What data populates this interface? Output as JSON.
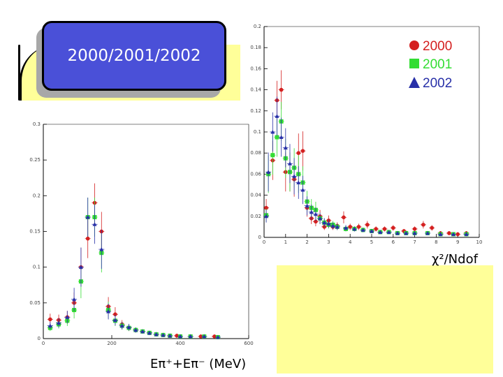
{
  "slide": {
    "badge_text": "2000/2001/2002"
  },
  "colors": {
    "y2000": "#d42020",
    "y2001": "#33dd33",
    "y2002": "#2830a8",
    "badge": "#4a50d8",
    "highlight": "#ffff99"
  },
  "icons": {
    "y2000": "filled-circle",
    "y2001": "filled-square",
    "y2002": "filled-triangle"
  },
  "legend": [
    {
      "label": "2000",
      "color": "#d42020",
      "marker": "circle"
    },
    {
      "label": "2001",
      "color": "#33dd33",
      "marker": "square"
    },
    {
      "label": "2002",
      "color": "#2830a8",
      "marker": "triangle"
    }
  ],
  "chart_data": [
    {
      "type": "scatter",
      "title": "",
      "xlabel": "Eπ⁺+Eπ⁻ (MeV)",
      "ylabel": "",
      "xlim": [
        0,
        600
      ],
      "ylim": [
        0,
        0.3
      ],
      "xticks": [
        "0",
        "200",
        "400",
        "600"
      ],
      "xtick_values": [
        0,
        200,
        400,
        600
      ],
      "yticks": [
        "0",
        "0.05",
        "0.1",
        "0.15",
        "0.2",
        "0.25",
        "0.3"
      ],
      "ytick_values": [
        0,
        0.05,
        0.1,
        0.15,
        0.2,
        0.25,
        0.3
      ],
      "series": [
        {
          "name": "2000",
          "points": [
            [
              20,
              0.027
            ],
            [
              45,
              0.026
            ],
            [
              70,
              0.03
            ],
            [
              90,
              0.05
            ],
            [
              110,
              0.1
            ],
            [
              130,
              0.14
            ],
            [
              150,
              0.19
            ],
            [
              170,
              0.15
            ],
            [
              190,
              0.045
            ],
            [
              210,
              0.034
            ],
            [
              230,
              0.02
            ],
            [
              250,
              0.015
            ],
            [
              270,
              0.012
            ],
            [
              290,
              0.01
            ],
            [
              310,
              0.008
            ],
            [
              330,
              0.006
            ],
            [
              350,
              0.005
            ],
            [
              370,
              0.004
            ],
            [
              390,
              0.004
            ],
            [
              430,
              0.003
            ],
            [
              460,
              0.003
            ],
            [
              500,
              0.003
            ]
          ]
        },
        {
          "name": "2001",
          "points": [
            [
              20,
              0.015
            ],
            [
              45,
              0.02
            ],
            [
              70,
              0.025
            ],
            [
              90,
              0.04
            ],
            [
              110,
              0.08
            ],
            [
              130,
              0.17
            ],
            [
              150,
              0.17
            ],
            [
              170,
              0.12
            ],
            [
              190,
              0.04
            ],
            [
              210,
              0.025
            ],
            [
              230,
              0.018
            ],
            [
              250,
              0.015
            ],
            [
              270,
              0.012
            ],
            [
              290,
              0.01
            ],
            [
              310,
              0.008
            ],
            [
              330,
              0.006
            ],
            [
              350,
              0.005
            ],
            [
              370,
              0.004
            ],
            [
              400,
              0.003
            ],
            [
              430,
              0.003
            ],
            [
              470,
              0.003
            ],
            [
              510,
              0.002
            ]
          ]
        },
        {
          "name": "2002",
          "points": [
            [
              20,
              0.018
            ],
            [
              45,
              0.022
            ],
            [
              70,
              0.03
            ],
            [
              90,
              0.055
            ],
            [
              110,
              0.1
            ],
            [
              130,
              0.17
            ],
            [
              150,
              0.16
            ],
            [
              170,
              0.125
            ],
            [
              190,
              0.038
            ],
            [
              210,
              0.026
            ],
            [
              230,
              0.018
            ],
            [
              250,
              0.016
            ],
            [
              270,
              0.012
            ],
            [
              290,
              0.01
            ],
            [
              310,
              0.008
            ],
            [
              330,
              0.006
            ],
            [
              350,
              0.005
            ],
            [
              370,
              0.004
            ],
            [
              400,
              0.003
            ],
            [
              430,
              0.003
            ],
            [
              470,
              0.003
            ],
            [
              510,
              0.002
            ]
          ]
        }
      ]
    },
    {
      "type": "scatter",
      "title": "",
      "xlabel": "χ²/Ndof",
      "ylabel": "",
      "xlim": [
        0,
        10
      ],
      "ylim": [
        0,
        0.2
      ],
      "xticks": [
        "0",
        "1",
        "2",
        "3",
        "4",
        "5",
        "6",
        "7",
        "8",
        "9",
        "10"
      ],
      "xtick_values": [
        0,
        1,
        2,
        3,
        4,
        5,
        6,
        7,
        8,
        9,
        10
      ],
      "yticks": [
        "0",
        "0.02",
        "0.04",
        "0.06",
        "0.08",
        "0.1",
        "0.12",
        "0.14",
        "0.16",
        "0.18",
        "0.2"
      ],
      "ytick_values": [
        0,
        0.02,
        0.04,
        0.06,
        0.08,
        0.1,
        0.12,
        0.14,
        0.16,
        0.18,
        0.2
      ],
      "series": [
        {
          "name": "2000",
          "points": [
            [
              0.1,
              0.028
            ],
            [
              0.4,
              0.073
            ],
            [
              0.6,
              0.13
            ],
            [
              0.8,
              0.14
            ],
            [
              1.0,
              0.062
            ],
            [
              1.2,
              0.062
            ],
            [
              1.4,
              0.055
            ],
            [
              1.6,
              0.08
            ],
            [
              1.8,
              0.082
            ],
            [
              2.0,
              0.028
            ],
            [
              2.2,
              0.018
            ],
            [
              2.4,
              0.015
            ],
            [
              2.6,
              0.02
            ],
            [
              2.8,
              0.01
            ],
            [
              3.0,
              0.016
            ],
            [
              3.2,
              0.01
            ],
            [
              3.4,
              0.011
            ],
            [
              3.7,
              0.019
            ],
            [
              4.0,
              0.01
            ],
            [
              4.4,
              0.01
            ],
            [
              4.8,
              0.012
            ],
            [
              5.2,
              0.008
            ],
            [
              5.6,
              0.008
            ],
            [
              6.0,
              0.009
            ],
            [
              6.5,
              0.006
            ],
            [
              7.0,
              0.008
            ],
            [
              7.4,
              0.012
            ],
            [
              7.8,
              0.009
            ],
            [
              8.2,
              0.004
            ],
            [
              8.6,
              0.004
            ],
            [
              9.0,
              0.003
            ],
            [
              9.4,
              0.004
            ]
          ]
        },
        {
          "name": "2001",
          "points": [
            [
              0.1,
              0.021
            ],
            [
              0.2,
              0.06
            ],
            [
              0.4,
              0.078
            ],
            [
              0.6,
              0.095
            ],
            [
              0.8,
              0.11
            ],
            [
              1.0,
              0.075
            ],
            [
              1.2,
              0.062
            ],
            [
              1.4,
              0.066
            ],
            [
              1.6,
              0.06
            ],
            [
              1.8,
              0.052
            ],
            [
              2.0,
              0.034
            ],
            [
              2.2,
              0.028
            ],
            [
              2.4,
              0.026
            ],
            [
              2.6,
              0.018
            ],
            [
              2.8,
              0.014
            ],
            [
              3.0,
              0.012
            ],
            [
              3.2,
              0.012
            ],
            [
              3.4,
              0.01
            ],
            [
              3.8,
              0.008
            ],
            [
              4.2,
              0.008
            ],
            [
              4.6,
              0.007
            ],
            [
              5.0,
              0.006
            ],
            [
              5.4,
              0.005
            ],
            [
              5.8,
              0.005
            ],
            [
              6.2,
              0.004
            ],
            [
              6.6,
              0.004
            ],
            [
              7.0,
              0.004
            ],
            [
              7.6,
              0.004
            ],
            [
              8.2,
              0.003
            ],
            [
              8.8,
              0.003
            ],
            [
              9.4,
              0.003
            ]
          ]
        },
        {
          "name": "2002",
          "points": [
            [
              0.1,
              0.02
            ],
            [
              0.2,
              0.062
            ],
            [
              0.4,
              0.1
            ],
            [
              0.6,
              0.115
            ],
            [
              0.8,
              0.095
            ],
            [
              1.0,
              0.085
            ],
            [
              1.2,
              0.07
            ],
            [
              1.4,
              0.058
            ],
            [
              1.6,
              0.052
            ],
            [
              1.8,
              0.045
            ],
            [
              2.0,
              0.03
            ],
            [
              2.2,
              0.024
            ],
            [
              2.4,
              0.022
            ],
            [
              2.6,
              0.018
            ],
            [
              2.8,
              0.014
            ],
            [
              3.0,
              0.013
            ],
            [
              3.2,
              0.011
            ],
            [
              3.4,
              0.01
            ],
            [
              3.8,
              0.009
            ],
            [
              4.2,
              0.008
            ],
            [
              4.6,
              0.007
            ],
            [
              5.0,
              0.006
            ],
            [
              5.4,
              0.005
            ],
            [
              5.8,
              0.005
            ],
            [
              6.2,
              0.004
            ],
            [
              6.6,
              0.004
            ],
            [
              7.0,
              0.004
            ],
            [
              7.6,
              0.004
            ],
            [
              8.2,
              0.003
            ],
            [
              8.8,
              0.003
            ],
            [
              9.4,
              0.003
            ]
          ]
        }
      ]
    }
  ]
}
